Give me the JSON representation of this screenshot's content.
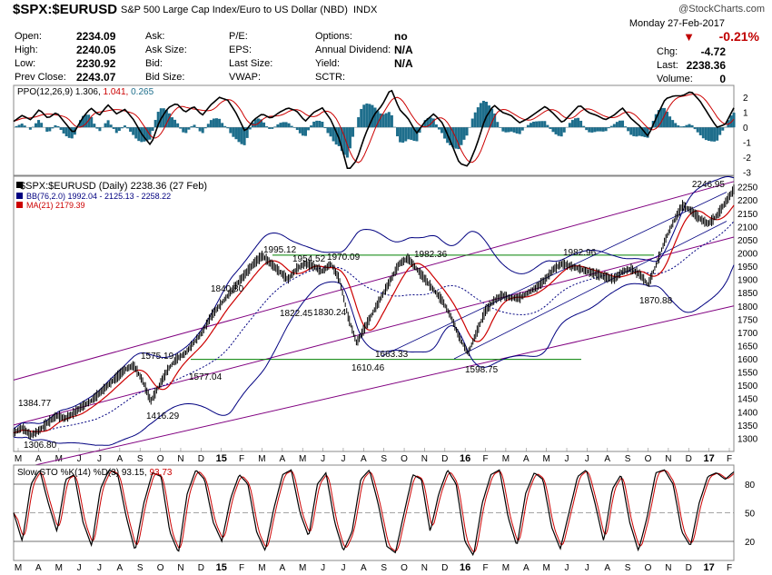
{
  "header": {
    "symbol": "$SPX:$EURUSD",
    "description": "S&P 500 Large Cap Index/Euro to US Dollar (NBD)",
    "exchange": "INDX",
    "watermark": "@StockCharts.com",
    "date": "Monday  27-Feb-2017",
    "change_pct": "-0.21%",
    "change_label": "Chg:",
    "change_value": "-4.72",
    "last_label": "Last:",
    "last_value": "2238.36",
    "volume_label": "Volume:",
    "volume_value": "0",
    "quote": [
      {
        "label": "Open:",
        "value": "2234.09"
      },
      {
        "label": "High:",
        "value": "2240.05"
      },
      {
        "label": "Low:",
        "value": "2230.92"
      },
      {
        "label": "Prev Close:",
        "value": "2243.07"
      }
    ],
    "quote2": [
      "Ask:",
      "Ask Size:",
      "Bid:",
      "Bid Size:"
    ],
    "quote3": [
      "P/E:",
      "EPS:",
      "Last Size:",
      "VWAP:"
    ],
    "quote4": [
      {
        "label": "Options:",
        "value": "no"
      },
      {
        "label": "Annual Dividend:",
        "value": "N/A"
      },
      {
        "label": "Yield:",
        "value": "N/A"
      },
      {
        "label": "SCTR:",
        "value": ""
      }
    ],
    "colors": {
      "down": "#c00000",
      "price": "#000000",
      "ma": "#cc0000",
      "bb": "#000080",
      "channel": "#800080",
      "support": "#008000",
      "hist": "#1e6e8c"
    }
  },
  "chart_data": [
    {
      "type": "line",
      "name": "ppo-panel",
      "legend": {
        "label": "PPO(12,26,9)",
        "v1": "1.306",
        "v2": "1.041",
        "v3": "0.265"
      },
      "ylim": [
        -3.2,
        2.8
      ],
      "yticks": [
        "2",
        "1",
        "0",
        "-1",
        "-2",
        "-3"
      ],
      "series": {
        "ppo": [
          0.4,
          0.8,
          0.5,
          1.2,
          0.6,
          1.0,
          0.3,
          -0.4,
          0.6,
          1.3,
          0.8,
          1.5,
          0.9,
          1.2,
          0.5,
          -0.5,
          -1.2,
          0.4,
          1.3,
          1.6,
          1.0,
          1.4,
          0.8,
          1.5,
          2.0,
          1.8,
          0.9,
          -0.3,
          0.5,
          0.9,
          0.6,
          1.0,
          1.3,
          1.1,
          0.4,
          1.0,
          1.3,
          0.5,
          -0.8,
          -2.9,
          -2.2,
          -0.5,
          0.8,
          1.5,
          2.6,
          1.2,
          0.6,
          -0.4,
          0.4,
          0.9,
          0.3,
          -1.0,
          -2.4,
          -2.6,
          -1.2,
          0.6,
          1.5,
          1.0,
          0.8,
          0.3,
          0.6,
          1.0,
          1.4,
          0.9,
          0.3,
          0.9,
          1.5,
          1.0,
          0.8,
          0.5,
          0.8,
          1.3,
          0.6,
          0.1,
          -0.6,
          0.7,
          1.9,
          2.1,
          2.1,
          2.4,
          1.8,
          0.9,
          0.0,
          0.2,
          1.3
        ]
      }
    },
    {
      "type": "line",
      "name": "price-panel",
      "legend": {
        "price": "$SPX:$EURUSD (Daily) 2238.36 (27 Feb)",
        "bb": "BB(76,2.0) 1992.04 - 2125.13 - 2258.22",
        "ma": "MA(21) 2179.39"
      },
      "ylim": [
        1250,
        2290
      ],
      "yticks": [
        "2250",
        "2200",
        "2150",
        "2100",
        "2050",
        "2000",
        "1950",
        "1900",
        "1850",
        "1800",
        "1750",
        "1700",
        "1650",
        "1600",
        "1550",
        "1500",
        "1450",
        "1400",
        "1350",
        "1300"
      ],
      "x_labels": [
        "M",
        "A",
        "M",
        "J",
        "J",
        "A",
        "S",
        "O",
        "N",
        "D",
        "15",
        "F",
        "M",
        "A",
        "M",
        "J",
        "J",
        "A",
        "S",
        "O",
        "N",
        "D",
        "16",
        "F",
        "M",
        "A",
        "M",
        "J",
        "J",
        "A",
        "S",
        "O",
        "N",
        "D",
        "17",
        "F"
      ],
      "annotations": [
        "2246.95",
        "1995.12",
        "1954.52",
        "1970.09",
        "1982.36",
        "1982.96",
        "1840.80",
        "1822.45",
        "1830.24",
        "1575.19",
        "1577.04",
        "1663.33",
        "1610.46",
        "1598.75",
        "1870.88",
        "1384.77",
        "1416.29",
        "1306.80"
      ],
      "series": {
        "close": [
          1320,
          1340,
          1310,
          1330,
          1360,
          1385,
          1375,
          1395,
          1420,
          1440,
          1470,
          1500,
          1530,
          1560,
          1575,
          1520,
          1440,
          1500,
          1560,
          1600,
          1620,
          1660,
          1700,
          1760,
          1800,
          1840,
          1880,
          1920,
          1960,
          1990,
          1960,
          1930,
          1900,
          1940,
          1960,
          1950,
          1930,
          1960,
          1900,
          1760,
          1660,
          1720,
          1780,
          1840,
          1900,
          1960,
          1980,
          1940,
          1900,
          1860,
          1820,
          1760,
          1680,
          1620,
          1700,
          1780,
          1820,
          1840,
          1830,
          1830,
          1850,
          1870,
          1900,
          1940,
          1960,
          1950,
          1940,
          1930,
          1920,
          1910,
          1900,
          1930,
          1940,
          1920,
          1880,
          1960,
          2050,
          2120,
          2180,
          2160,
          2130,
          2110,
          2140,
          2190,
          2240
        ]
      }
    },
    {
      "type": "line",
      "name": "sto-panel",
      "legend": {
        "label": "Slow STO %K(14) %D(3)",
        "v1": "93.15",
        "v2": "93.73"
      },
      "ylim": [
        0,
        100
      ],
      "yticks": [
        "80",
        "50",
        "20"
      ],
      "x_labels": [
        "M",
        "A",
        "M",
        "J",
        "J",
        "A",
        "S",
        "O",
        "N",
        "D",
        "15",
        "F",
        "M",
        "A",
        "M",
        "J",
        "J",
        "A",
        "S",
        "O",
        "N",
        "D",
        "16",
        "F",
        "M",
        "A",
        "M",
        "J",
        "J",
        "A",
        "S",
        "O",
        "N",
        "D",
        "17",
        "F"
      ],
      "series": {
        "k": [
          50,
          20,
          80,
          95,
          60,
          30,
          85,
          90,
          40,
          15,
          75,
          95,
          90,
          45,
          10,
          60,
          92,
          88,
          30,
          8,
          70,
          95,
          85,
          40,
          20,
          65,
          90,
          80,
          30,
          10,
          55,
          90,
          95,
          50,
          25,
          80,
          92,
          40,
          10,
          30,
          85,
          95,
          60,
          15,
          8,
          50,
          90,
          85,
          30,
          70,
          95,
          80,
          20,
          5,
          60,
          90,
          95,
          45,
          15,
          70,
          92,
          85,
          35,
          12,
          50,
          88,
          95,
          60,
          20,
          75,
          90,
          40,
          10,
          45,
          92,
          95,
          80,
          30,
          15,
          60,
          88,
          92,
          85,
          93
        ]
      }
    }
  ]
}
